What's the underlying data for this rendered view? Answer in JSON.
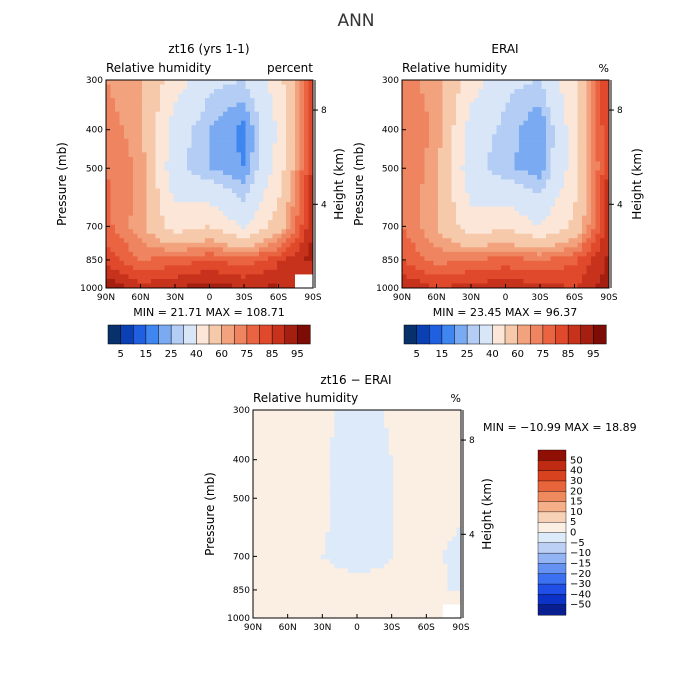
{
  "figure_title": "ANN",
  "colors": {
    "main": [
      "#08306b",
      "#0b3fb4",
      "#1f5fe0",
      "#3f86f0",
      "#79aaf2",
      "#b3cdf5",
      "#d9e6f7",
      "#fbe6d8",
      "#f6c9ab",
      "#f2a37e",
      "#ef8460",
      "#ea6442",
      "#e0492b",
      "#c6321b",
      "#a51f10",
      "#7d0c06"
    ],
    "diff": [
      "#0a1f8f",
      "#0d32c8",
      "#1f4fe6",
      "#3b70f0",
      "#6592f2",
      "#93b4f4",
      "#bcd0f6",
      "#ddeafa",
      "#fbeee3",
      "#f8d2b6",
      "#f4ae88",
      "#ef8a5f",
      "#e8643b",
      "#d9421f",
      "#bf2a12",
      "#8f0f05"
    ]
  },
  "chart_data": [
    {
      "type": "heatmap",
      "title": "zt16 (yrs 1-1)",
      "subtitle": "Relative humidity",
      "units": "percent",
      "ylabel": "Pressure (mb)",
      "y2label": "Height (km)",
      "xticks": [
        "90N",
        "60N",
        "30N",
        "0",
        "30S",
        "60S",
        "90S"
      ],
      "yticks": [
        "300",
        "400",
        "500",
        "700",
        "850",
        "1000"
      ],
      "y2ticks": [
        "8",
        "4"
      ],
      "ylim": [
        1000,
        300
      ],
      "xlim": [
        90,
        -90
      ],
      "stats": "MIN =   21.71   MAX =  108.71",
      "colorbar_labels": [
        "5",
        "15",
        "25",
        "40",
        "60",
        "75",
        "85",
        "95"
      ],
      "levels": [
        5,
        10,
        15,
        20,
        25,
        30,
        40,
        50,
        60,
        65,
        70,
        75,
        80,
        85,
        90,
        95
      ],
      "x": [
        90,
        60,
        30,
        0,
        -30,
        -60,
        -90
      ],
      "p": [
        300,
        400,
        500,
        700,
        850,
        1000
      ],
      "values": [
        [
          65,
          60,
          45,
          32,
          30,
          45,
          80
        ],
        [
          68,
          62,
          35,
          25,
          18,
          42,
          80
        ],
        [
          70,
          64,
          32,
          25,
          20,
          44,
          82
        ],
        [
          72,
          62,
          45,
          50,
          38,
          55,
          85
        ],
        [
          78,
          70,
          72,
          75,
          72,
          78,
          88
        ],
        [
          90,
          82,
          85,
          88,
          85,
          86,
          null
        ]
      ]
    },
    {
      "type": "heatmap",
      "title": "ERAI",
      "subtitle": "Relative humidity",
      "units": "%",
      "ylabel": "Pressure (mb)",
      "y2label": "Height (km)",
      "xticks": [
        "90N",
        "60N",
        "30N",
        "0",
        "30S",
        "60S",
        "90S"
      ],
      "yticks": [
        "300",
        "400",
        "500",
        "700",
        "850",
        "1000"
      ],
      "y2ticks": [
        "8",
        "4"
      ],
      "ylim": [
        1000,
        300
      ],
      "xlim": [
        90,
        -90
      ],
      "stats": "MIN =   23.45   MAX =   96.37",
      "colorbar_labels": [
        "5",
        "15",
        "25",
        "40",
        "60",
        "75",
        "85",
        "95"
      ],
      "levels": [
        5,
        10,
        15,
        20,
        25,
        30,
        40,
        50,
        60,
        65,
        70,
        75,
        80,
        85,
        90,
        95
      ],
      "x": [
        90,
        60,
        30,
        0,
        -30,
        -60,
        -90
      ],
      "p": [
        300,
        400,
        500,
        700,
        850,
        1000
      ],
      "values": [
        [
          68,
          62,
          45,
          32,
          30,
          48,
          82
        ],
        [
          70,
          64,
          35,
          28,
          20,
          46,
          82
        ],
        [
          70,
          62,
          33,
          26,
          22,
          45,
          82
        ],
        [
          70,
          60,
          44,
          48,
          40,
          52,
          84
        ],
        [
          75,
          68,
          70,
          72,
          70,
          74,
          86
        ],
        [
          85,
          80,
          82,
          84,
          82,
          80,
          88
        ]
      ]
    },
    {
      "type": "heatmap",
      "title": "zt16 − ERAI",
      "subtitle": "Relative humidity",
      "units": "%",
      "ylabel": "Pressure (mb)",
      "y2label": "Height (km)",
      "xticks": [
        "90N",
        "60N",
        "30N",
        "0",
        "30S",
        "60S",
        "90S"
      ],
      "yticks": [
        "300",
        "400",
        "500",
        "700",
        "850",
        "1000"
      ],
      "y2ticks": [
        "8",
        "4"
      ],
      "ylim": [
        1000,
        300
      ],
      "xlim": [
        90,
        -90
      ],
      "stats": "MIN = −10.99   MAX =   18.89",
      "colorbar_labels": [
        "50",
        "40",
        "30",
        "20",
        "15",
        "10",
        "5",
        "0",
        "−5",
        "−10",
        "−15",
        "−20",
        "−30",
        "−40",
        "−50"
      ],
      "levels": [
        -50,
        -40,
        -30,
        -20,
        -15,
        -10,
        -5,
        0,
        5,
        10,
        15,
        20,
        30,
        40,
        50
      ],
      "x": [
        90,
        60,
        30,
        0,
        -30,
        -60,
        -90
      ],
      "p": [
        300,
        400,
        500,
        700,
        850,
        1000
      ],
      "values": [
        [
          2,
          1,
          2,
          -3,
          1,
          1,
          2
        ],
        [
          2,
          2,
          1,
          -4,
          0,
          1,
          1
        ],
        [
          1,
          3,
          1,
          -3,
          0,
          1,
          1
        ],
        [
          0,
          2,
          0,
          -2,
          0,
          1,
          -1
        ],
        [
          2,
          2,
          2,
          2,
          1,
          3,
          -2
        ],
        [
          3,
          2,
          4,
          3,
          3,
          5,
          null
        ]
      ]
    }
  ]
}
